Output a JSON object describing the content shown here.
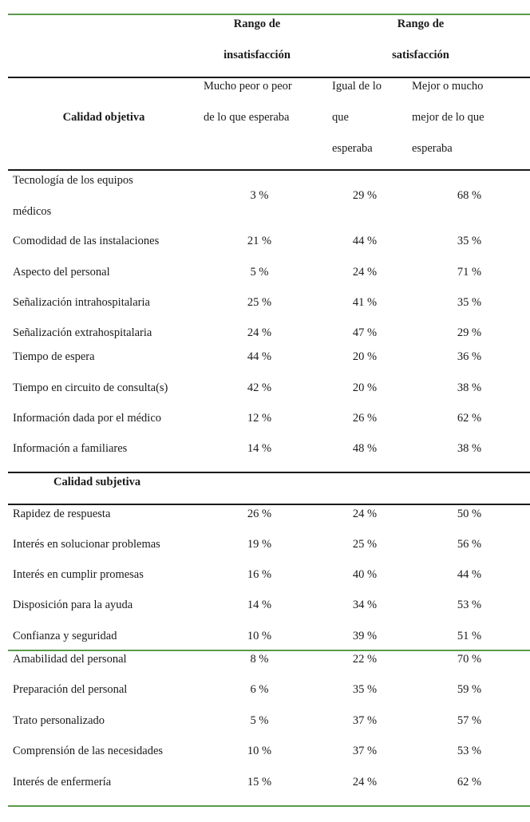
{
  "header": {
    "insat_title_1": "Rango de",
    "insat_title_2": "insatisfacción",
    "sat_title_1": "Rango de",
    "sat_title_2": "satisfacción",
    "col0": "Calidad objetiva",
    "col1_lines": [
      "Mucho peor o peor",
      "de lo que esperaba"
    ],
    "col2_lines": [
      "Igual de lo",
      "que",
      "esperaba"
    ],
    "col3_lines": [
      "Mejor o mucho",
      "mejor de lo que",
      "esperaba"
    ]
  },
  "objective_rows": [
    {
      "label": "Tecnología  de los equipos",
      "label2": "médicos",
      "v1": "3 %",
      "v2": "29 %",
      "v3": "68 %"
    },
    {
      "label": "Comodidad de las instalaciones",
      "v1": "21 %",
      "v2": "44 %",
      "v3": "35 %"
    },
    {
      "label": "Aspecto del personal",
      "v1": "5 %",
      "v2": "24 %",
      "v3": "71 %"
    },
    {
      "label": "Señalización  intrahospitalaria",
      "v1": "25 %",
      "v2": "41 %",
      "v3": "35 %"
    },
    {
      "label": "Señalización  extrahospitalaria",
      "v1": "24 %",
      "v2": "47 %",
      "v3": "29 %"
    },
    {
      "label": "Tiempo  de espera",
      "v1": "44 %",
      "v2": "20 %",
      "v3": "36 %"
    },
    {
      "label": "Tiempo  en circuito de consulta(s)",
      "v1": "42 %",
      "v2": "20 %",
      "v3": "38 %"
    },
    {
      "label": "Información dada por el médico",
      "v1": "12 %",
      "v2": "26 %",
      "v3": "62 %"
    },
    {
      "label": "Información a familiares",
      "v1": "14 %",
      "v2": "48 %",
      "v3": "38 %"
    }
  ],
  "subjective_title": "Calidad subjetiva",
  "subjective_rows": [
    {
      "label": "Rapidez de respuesta",
      "v1": "26 %",
      "v2": "24 %",
      "v3": "50 %"
    },
    {
      "label": "Interés en solucionar problemas",
      "v1": "19 %",
      "v2": "25 %",
      "v3": "56 %"
    },
    {
      "label": "Interés en cumplir promesas",
      "v1": "16 %",
      "v2": "40 %",
      "v3": "44 %"
    },
    {
      "label": "Disposición para la ayuda",
      "v1": "14 %",
      "v2": "34 %",
      "v3": "53 %"
    },
    {
      "label": "Confianza y seguridad",
      "v1": "10 %",
      "v2": "39 %",
      "v3": "51 %"
    },
    {
      "label": "Amabilidad del personal",
      "v1": "8 %",
      "v2": "22 %",
      "v3": "70 %"
    },
    {
      "label": "Preparación del personal",
      "v1": "6 %",
      "v2": "35 %",
      "v3": "59 %"
    },
    {
      "label": "Trato personalizado",
      "v1": "5 %",
      "v2": "37 %",
      "v3": "57 %"
    },
    {
      "label": "Comprensión de las necesidades",
      "v1": "10 %",
      "v2": "37 %",
      "v3": "53 %"
    },
    {
      "label": "Interés de enfermería",
      "v1": "15 %",
      "v2": "24 %",
      "v3": "62 %"
    }
  ]
}
